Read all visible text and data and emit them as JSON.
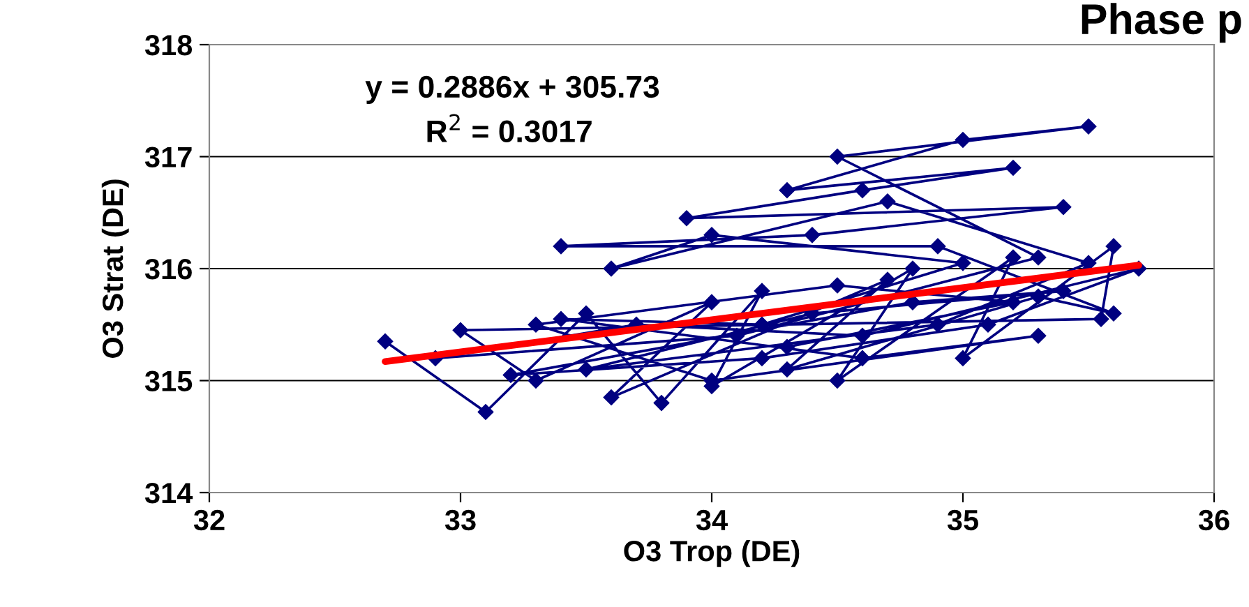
{
  "chart_data": {
    "type": "line",
    "title": "Phase p",
    "xlabel": "O3 Trop (DE)",
    "ylabel": "O3 Strat (DE)",
    "annotations": [
      "y = 0.2886x + 305.73",
      "R$^{2}$ = 0.3017"
    ],
    "xlim": [
      32,
      36
    ],
    "xticks": [
      32,
      33,
      34,
      35,
      36
    ],
    "ylim": [
      314,
      318
    ],
    "yticks": [
      314,
      315,
      316,
      317,
      318
    ],
    "grid": "y",
    "marker": "diamond",
    "line_style": "solid",
    "series": [
      {
        "color": "#000080",
        "x": [
          32.7,
          33.1,
          33.5,
          33.8,
          34.2,
          34.0,
          34.8,
          34.5,
          35.2,
          35.0,
          35.6,
          35.55,
          33.0,
          33.3,
          34.0,
          33.6,
          34.7,
          34.3,
          35.3,
          35.6,
          34.9,
          33.4,
          34.4,
          35.4,
          33.9,
          34.6,
          35.2,
          34.3,
          35.0,
          35.5,
          34.5,
          35.3,
          34.1,
          32.9,
          33.7,
          34.6,
          35.7,
          35.1,
          34.2,
          33.2,
          34.8,
          35.4,
          34.4,
          33.5,
          34.9,
          35.5,
          34.7,
          33.6,
          34.0,
          35.0,
          34.2,
          33.4,
          34.6,
          35.3,
          34.0,
          33.3,
          34.5,
          35.2,
          34.3
        ],
        "values": [
          315.35,
          314.72,
          315.6,
          314.8,
          315.8,
          314.95,
          316.0,
          315.0,
          316.1,
          315.2,
          316.2,
          315.55,
          315.45,
          315.0,
          315.7,
          314.85,
          315.9,
          315.1,
          315.75,
          315.6,
          316.2,
          316.2,
          316.3,
          316.55,
          316.45,
          316.7,
          316.9,
          316.7,
          317.15,
          317.27,
          317.0,
          316.1,
          315.4,
          315.2,
          315.5,
          315.4,
          316.0,
          315.5,
          315.2,
          315.05,
          315.7,
          315.8,
          315.6,
          315.1,
          315.5,
          316.05,
          316.6,
          316.0,
          316.3,
          316.05,
          315.5,
          315.55,
          315.2,
          315.4,
          315.0,
          315.5,
          315.85,
          315.7,
          315.3
        ]
      },
      {
        "type": "line",
        "marker": "none",
        "color": "#ff0000",
        "x": [
          32.7,
          35.7
        ],
        "values": [
          315.17,
          316.03
        ]
      }
    ]
  }
}
